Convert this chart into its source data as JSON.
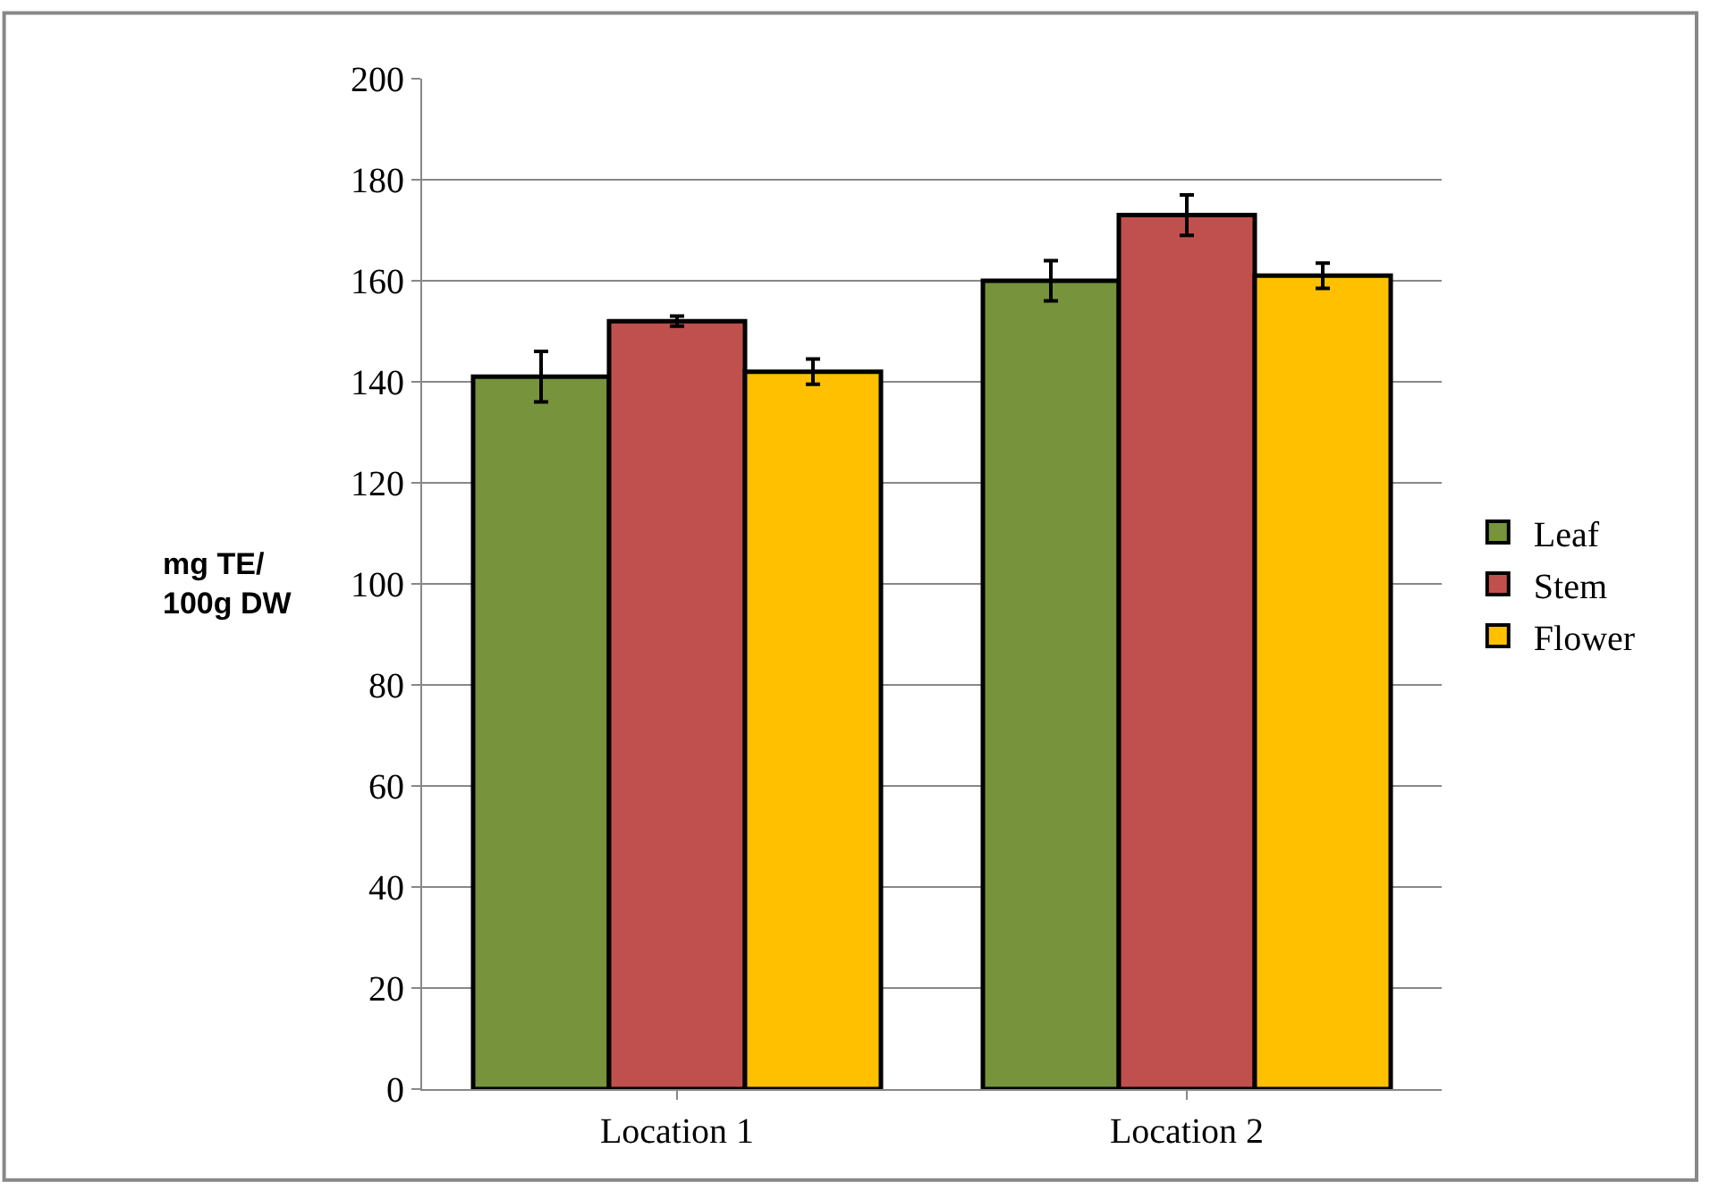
{
  "chart_data": {
    "type": "bar",
    "ylabel": "mg TE/\n100g DW",
    "categories": [
      "Location 1",
      "Location 2"
    ],
    "series": [
      {
        "name": "Leaf",
        "color": "#77933c",
        "values": [
          141,
          160
        ],
        "errors": [
          5,
          4
        ]
      },
      {
        "name": "Stem",
        "color": "#c0504d",
        "values": [
          152,
          173
        ],
        "errors": [
          1,
          4
        ]
      },
      {
        "name": "Flower",
        "color": "#ffc000",
        "values": [
          142,
          161
        ],
        "errors": [
          2.5,
          2.5
        ]
      }
    ],
    "ylim": [
      0,
      200
    ],
    "yticks": [
      0,
      20,
      40,
      60,
      80,
      100,
      120,
      140,
      160,
      180,
      200
    ],
    "grid": "y",
    "legend": "right"
  }
}
